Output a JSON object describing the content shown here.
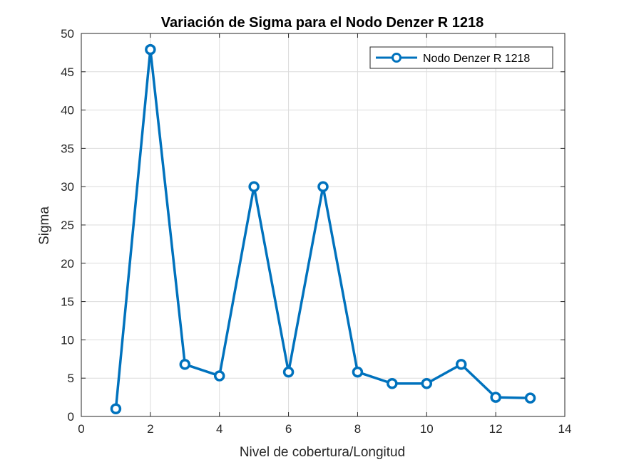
{
  "chart_data": {
    "type": "line",
    "title": "Variación de Sigma para el Nodo Denzer R 1218",
    "xlabel": "Nivel de cobertura/Longitud",
    "ylabel": "Sigma",
    "xlim": [
      0,
      14
    ],
    "ylim": [
      0,
      50
    ],
    "xticks": [
      0,
      2,
      4,
      6,
      8,
      10,
      12,
      14
    ],
    "yticks": [
      0,
      5,
      10,
      15,
      20,
      25,
      30,
      35,
      40,
      45,
      50
    ],
    "grid": true,
    "legend_position": "top-right",
    "series": [
      {
        "name": "Nodo Denzer R 1218",
        "color": "#0072BD",
        "marker": "circle",
        "x": [
          1,
          2,
          3,
          4,
          5,
          6,
          7,
          8,
          9,
          10,
          11,
          12,
          13
        ],
        "y": [
          1.0,
          47.9,
          6.8,
          5.3,
          30.0,
          5.8,
          30.0,
          5.8,
          4.3,
          4.3,
          6.8,
          2.5,
          2.4
        ]
      }
    ]
  }
}
